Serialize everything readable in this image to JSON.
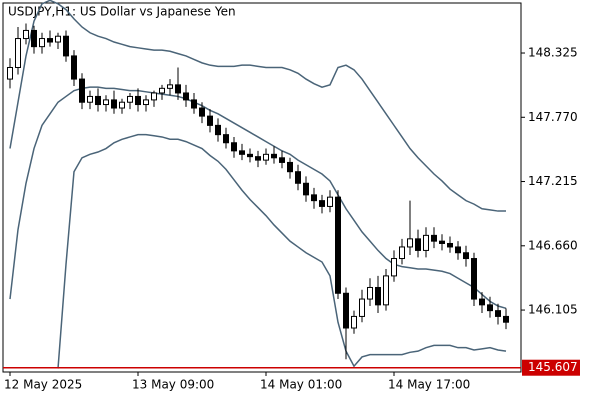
{
  "chart_data": {
    "type": "candlestick",
    "title": "USDJPY,H1:  US Dollar vs Japanese Yen",
    "categories": [
      "12 May 2025",
      null,
      null,
      null,
      null,
      null,
      null,
      null,
      null,
      null,
      null,
      null,
      null,
      null,
      null,
      null,
      "13 May 09:00",
      null,
      null,
      null,
      null,
      null,
      null,
      null,
      null,
      null,
      null,
      null,
      null,
      null,
      null,
      null,
      "14 May 01:00",
      null,
      null,
      null,
      null,
      null,
      null,
      null,
      null,
      null,
      null,
      null,
      null,
      null,
      null,
      null,
      "14 May 17:00",
      null,
      null,
      null,
      null,
      null,
      null,
      null,
      null,
      null,
      null,
      null,
      null,
      null,
      null
    ],
    "open": [
      148.1,
      148.2,
      148.45,
      148.52,
      148.38,
      148.45,
      148.42,
      148.47,
      148.3,
      148.1,
      147.9,
      147.95,
      147.88,
      147.92,
      147.85,
      147.9,
      147.95,
      147.88,
      147.92,
      147.98,
      148.02,
      148.05,
      147.98,
      147.92,
      147.85,
      147.78,
      147.7,
      147.62,
      147.55,
      147.48,
      147.45,
      147.43,
      147.4,
      147.45,
      147.42,
      147.38,
      147.3,
      147.2,
      147.1,
      147.05,
      147.0,
      147.08,
      146.25,
      145.95,
      146.05,
      146.2,
      146.3,
      146.15,
      146.4,
      146.55,
      146.65,
      146.72,
      146.62,
      146.75,
      146.7,
      146.68,
      146.65,
      146.6,
      146.55,
      146.2,
      146.15,
      146.1,
      146.05
    ],
    "high": [
      148.28,
      148.55,
      148.58,
      148.56,
      148.5,
      148.52,
      148.5,
      148.52,
      148.35,
      148.15,
      148.0,
      148.02,
      147.96,
      148.0,
      147.93,
      147.98,
      148.02,
      147.96,
      148.0,
      148.05,
      148.1,
      148.2,
      148.05,
      147.98,
      147.9,
      147.84,
      147.76,
      147.68,
      147.6,
      147.54,
      147.5,
      147.48,
      147.5,
      147.52,
      147.48,
      147.42,
      147.36,
      147.26,
      147.16,
      147.1,
      147.14,
      147.14,
      146.3,
      146.1,
      146.28,
      146.38,
      146.4,
      146.46,
      146.62,
      146.72,
      147.05,
      146.8,
      146.82,
      146.82,
      146.76,
      146.74,
      146.7,
      146.66,
      146.6,
      146.26,
      146.22,
      146.16,
      146.12
    ],
    "low": [
      148.02,
      148.14,
      148.4,
      148.32,
      148.32,
      148.38,
      148.36,
      148.25,
      148.04,
      147.84,
      147.84,
      147.82,
      147.82,
      147.8,
      147.8,
      147.84,
      147.82,
      147.82,
      147.86,
      147.92,
      147.96,
      147.92,
      147.86,
      147.8,
      147.72,
      147.64,
      147.56,
      147.5,
      147.42,
      147.4,
      147.38,
      147.34,
      147.36,
      147.37,
      147.33,
      147.24,
      147.14,
      147.04,
      146.98,
      146.94,
      146.95,
      146.2,
      145.68,
      145.9,
      146.0,
      146.14,
      146.08,
      146.1,
      146.35,
      146.5,
      146.58,
      146.56,
      146.56,
      146.64,
      146.62,
      146.6,
      146.54,
      146.48,
      146.14,
      146.08,
      146.04,
      145.98,
      145.94
    ],
    "close": [
      148.2,
      148.45,
      148.52,
      148.38,
      148.45,
      148.42,
      148.47,
      148.3,
      148.1,
      147.9,
      147.95,
      147.88,
      147.92,
      147.85,
      147.9,
      147.95,
      147.88,
      147.92,
      147.98,
      148.02,
      148.05,
      147.98,
      147.92,
      147.85,
      147.78,
      147.7,
      147.62,
      147.55,
      147.48,
      147.45,
      147.43,
      147.4,
      147.45,
      147.42,
      147.38,
      147.3,
      147.2,
      147.1,
      147.05,
      147.0,
      147.08,
      146.25,
      145.95,
      146.05,
      146.2,
      146.3,
      146.15,
      146.4,
      146.55,
      146.65,
      146.72,
      146.62,
      146.75,
      146.7,
      146.68,
      146.65,
      146.6,
      146.55,
      146.2,
      146.15,
      146.1,
      146.05,
      146.0
    ],
    "bands": [
      {
        "color": "#4a6478",
        "values": [
          147.5,
          147.9,
          148.3,
          148.6,
          148.75,
          148.78,
          148.75,
          148.7,
          148.62,
          148.55,
          148.5,
          148.47,
          148.45,
          148.42,
          148.4,
          148.38,
          148.37,
          148.36,
          148.35,
          148.35,
          148.34,
          148.32,
          148.3,
          148.27,
          148.24,
          148.22,
          148.21,
          148.21,
          148.21,
          148.22,
          148.22,
          148.21,
          148.2,
          148.2,
          148.2,
          148.18,
          148.15,
          148.1,
          148.06,
          148.03,
          148.05,
          148.2,
          148.22,
          148.18,
          148.1,
          148.0,
          147.9,
          147.8,
          147.7,
          147.6,
          147.5,
          147.42,
          147.35,
          147.28,
          147.22,
          147.15,
          147.1,
          147.05,
          147.02,
          146.98,
          146.97,
          146.96,
          146.96
        ]
      },
      {
        "color": "#4a6478",
        "values": [
          146.2,
          146.8,
          147.2,
          147.5,
          147.7,
          147.8,
          147.9,
          147.95,
          148.0,
          148.02,
          148.03,
          148.03,
          148.02,
          148.02,
          148.01,
          148.0,
          148.0,
          147.99,
          147.98,
          147.97,
          147.96,
          147.95,
          147.93,
          147.9,
          147.87,
          147.83,
          147.8,
          147.76,
          147.72,
          147.68,
          147.64,
          147.6,
          147.56,
          147.52,
          147.48,
          147.45,
          147.4,
          147.36,
          147.32,
          147.28,
          147.22,
          147.1,
          146.98,
          146.88,
          146.78,
          146.7,
          146.62,
          146.55,
          146.5,
          146.48,
          146.47,
          146.46,
          146.46,
          146.45,
          146.44,
          146.42,
          146.38,
          146.34,
          146.3,
          146.24,
          146.18,
          146.14,
          146.12
        ]
      },
      {
        "color": "#4a6478",
        "values": [
          null,
          null,
          null,
          null,
          null,
          null,
          145.6,
          146.5,
          147.3,
          147.42,
          147.45,
          147.47,
          147.5,
          147.55,
          147.58,
          147.6,
          147.62,
          147.62,
          147.61,
          147.6,
          147.58,
          147.58,
          147.56,
          147.53,
          147.5,
          147.44,
          147.39,
          147.32,
          147.23,
          147.14,
          147.06,
          146.99,
          146.92,
          146.84,
          146.77,
          146.7,
          146.65,
          146.6,
          146.56,
          146.52,
          146.4,
          146.0,
          145.75,
          145.62,
          145.7,
          145.72,
          145.72,
          145.72,
          145.72,
          145.72,
          145.74,
          145.75,
          145.78,
          145.8,
          145.8,
          145.8,
          145.78,
          145.78,
          145.76,
          145.77,
          145.78,
          145.76,
          145.75
        ]
      }
    ],
    "up_color": "#ffffff",
    "down_color": "#000000",
    "wick_color": "#000000",
    "current_price": 145.607,
    "current_price_color": "#cc0000",
    "ylim": [
      145.57,
      148.757
    ],
    "yticks": [
      148.325,
      {
        "value": 147.77,
        "label": "147.770"
      },
      147.215,
      {
        "value": 146.66,
        "label": "146.660"
      },
      146.105
    ]
  }
}
